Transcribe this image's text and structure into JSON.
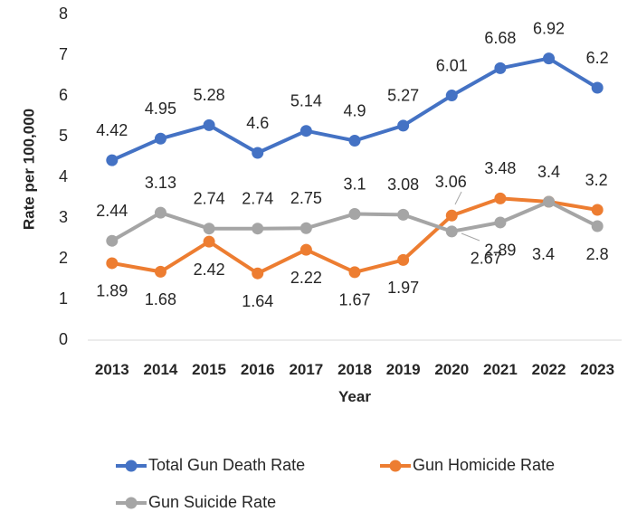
{
  "chart_data": {
    "type": "line",
    "title": "",
    "xlabel": "Year",
    "ylabel": "Rate per 100,000",
    "ylim": [
      0,
      8
    ],
    "yticks": [
      "0",
      "1",
      "2",
      "3",
      "4",
      "5",
      "6",
      "7",
      "8"
    ],
    "categories": [
      "2013",
      "2014",
      "2015",
      "2016",
      "2017",
      "2018",
      "2019",
      "2020",
      "2021",
      "2022",
      "2023"
    ],
    "grid": false,
    "legend_position": "bottom",
    "series": [
      {
        "name": "Total Gun Death Rate",
        "color": "#4472C4",
        "values": [
          4.42,
          4.95,
          5.28,
          4.6,
          5.14,
          4.9,
          5.27,
          6.01,
          6.68,
          6.92,
          6.2
        ],
        "labels": [
          "4.42",
          "4.95",
          "5.28",
          "4.6",
          "5.14",
          "4.9",
          "5.27",
          "6.01",
          "6.68",
          "6.92",
          "6.2"
        ]
      },
      {
        "name": "Gun Homicide Rate",
        "color": "#ED7D31",
        "values": [
          1.89,
          1.68,
          2.42,
          1.64,
          2.22,
          1.67,
          1.97,
          3.06,
          3.48,
          3.4,
          3.2
        ],
        "labels": [
          "1.89",
          "1.68",
          "2.42",
          "1.64",
          "2.22",
          "1.67",
          "1.97",
          "3.06",
          "3.48",
          "3.4",
          "3.2"
        ]
      },
      {
        "name": "Gun Suicide Rate",
        "color": "#A5A5A5",
        "values": [
          2.44,
          3.13,
          2.74,
          2.74,
          2.75,
          3.1,
          3.08,
          2.67,
          2.89,
          3.4,
          2.8
        ],
        "labels": [
          "2.44",
          "3.13",
          "2.74",
          "2.74",
          "2.75",
          "3.1",
          "3.08",
          "2.67",
          "2.89",
          "3.4",
          "2.8"
        ]
      }
    ]
  }
}
